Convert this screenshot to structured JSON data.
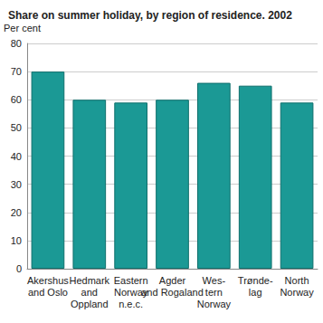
{
  "chart_data": {
    "type": "bar",
    "title": "Share on summer holiday, by region of residence. 2002",
    "y_label": "Per cent",
    "categories": [
      "Akershus\nand Oslo",
      "Hedmark\nand\nOppland",
      "Eastern\nNorway\nn.e.c.",
      "Agder\nand Rogaland",
      "Wes-\ntern\nNorway",
      "Trønde-\nlag",
      "North\nNorway"
    ],
    "values": [
      70,
      60,
      59,
      60,
      66,
      65,
      59
    ],
    "color": "#1b9995",
    "ylim": [
      0,
      80
    ],
    "yticks": [
      0,
      10,
      20,
      30,
      40,
      50,
      60,
      70,
      80
    ],
    "grid": true
  }
}
